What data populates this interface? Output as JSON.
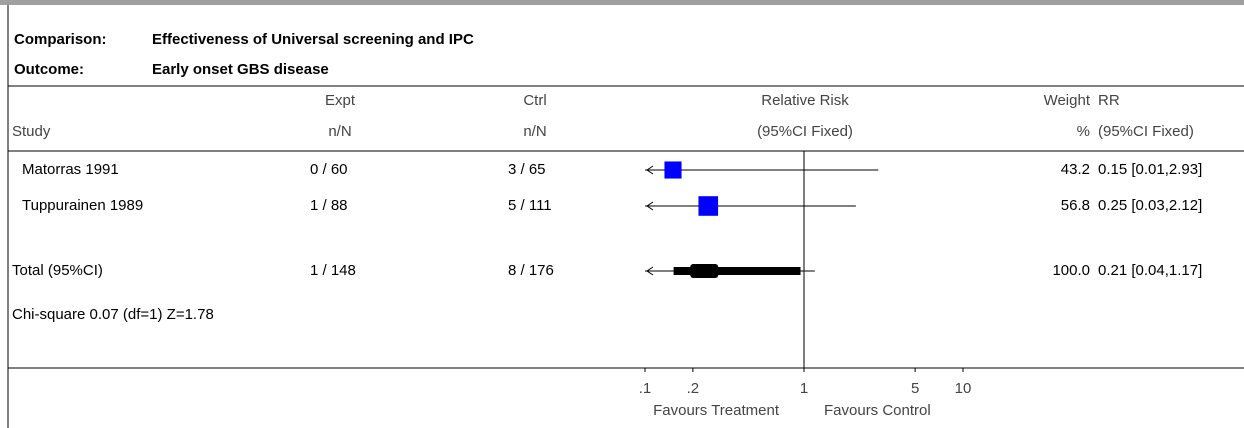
{
  "header": {
    "comparison_label": "Comparison:",
    "comparison": "Effectiveness of Universal screening and IPC",
    "outcome_label": "Outcome:",
    "outcome": "Early onset GBS disease"
  },
  "columns": {
    "study": "Study",
    "expt": "Expt",
    "expt_sub": "n/N",
    "ctrl": "Ctrl",
    "ctrl_sub": "n/N",
    "rr_plot": "Relative Risk",
    "rr_plot_sub": "(95%CI Fixed)",
    "weight": "Weight",
    "weight_sub": "%",
    "rr": "RR",
    "rr_sub": "(95%CI Fixed)"
  },
  "chart_data": {
    "type": "forest",
    "log_scale": true,
    "color": "#0000ff",
    "categories": [
      "Matorras 1991",
      "Tuppurainen 1989"
    ],
    "expt": [
      "0 / 60",
      "1 / 88"
    ],
    "ctrl": [
      "3 / 65",
      "5 / 111"
    ],
    "weights": [
      43.2,
      56.8
    ],
    "values": [
      0.15,
      0.25
    ],
    "ci_low": [
      0.01,
      0.03
    ],
    "ci_high": [
      2.93,
      2.12
    ],
    "value_labels": [
      "0.15 [0.01,2.93]",
      "0.25 [0.03,2.12]"
    ],
    "total": {
      "name": "Total (95%CI)",
      "expt": "1 / 148",
      "ctrl": "8 / 176",
      "weight_label": "100.0",
      "value": 0.21,
      "ci_low": 0.04,
      "ci_high": 1.17,
      "value_label": "0.21 [0.04,1.17]"
    },
    "heterogeneity": "Chi-square 0.07 (df=1)  Z=1.78",
    "xlim": [
      0.1,
      10
    ],
    "xticks": [
      {
        "value": 0.1,
        "label": ".1"
      },
      {
        "value": 0.2,
        "label": ".2"
      },
      1,
      5,
      10
    ],
    "favours_left": "Favours Treatment",
    "favours_right": "Favours Control"
  }
}
